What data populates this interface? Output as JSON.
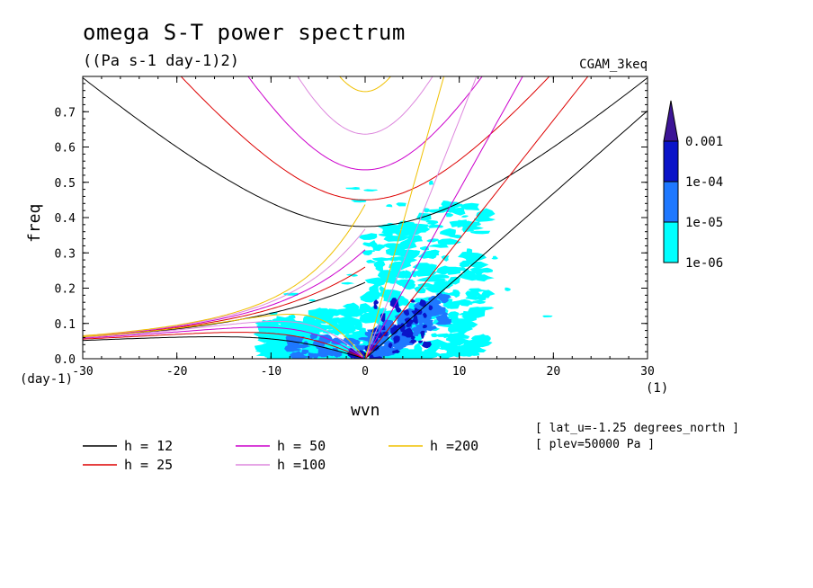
{
  "chart_data": {
    "type": "heatmap",
    "title": "omega S-T power spectrum",
    "subtitle": "((Pa s-1 day-1)2)",
    "dataset": "CGAM_3keq",
    "xlabel": "wvn",
    "ylabel": "freq",
    "x_unit": "(1)",
    "y_unit": "(day-1)",
    "xlim": [
      -30,
      30
    ],
    "ylim": [
      0,
      0.8
    ],
    "x_ticks": [
      -30,
      -20,
      -10,
      0,
      10,
      20,
      30
    ],
    "x_tick_labels": [
      "-30",
      "-20",
      "-10",
      "0",
      "10",
      "20",
      "30"
    ],
    "y_ticks": [
      0,
      0.1,
      0.2,
      0.3,
      0.4,
      0.5,
      0.6,
      0.7
    ],
    "y_tick_labels": [
      "0.0",
      "0.1",
      "0.2",
      "0.3",
      "0.4",
      "0.5",
      "0.6",
      "0.7"
    ],
    "colorbar": {
      "levels": [
        "1e-06",
        "1e-05",
        "1e-04",
        "0.001"
      ],
      "colors": [
        "#00ffff",
        "#1e78ff",
        "#0a14c8",
        "#3c1496"
      ]
    },
    "series": [
      {
        "name": "h = 12",
        "h": 12,
        "color": "#000000"
      },
      {
        "name": "h = 25",
        "h": 25,
        "color": "#dd0000"
      },
      {
        "name": "h = 50",
        "h": 50,
        "color": "#cc00cc"
      },
      {
        "name": "h =100",
        "h": 100,
        "color": "#dd88dd"
      },
      {
        "name": "h =200",
        "h": 200,
        "color": "#f0c000"
      }
    ],
    "annotations": [
      "[ lat_u=-1.25 degrees_north ]",
      "[ plev=50000 Pa ]"
    ]
  }
}
